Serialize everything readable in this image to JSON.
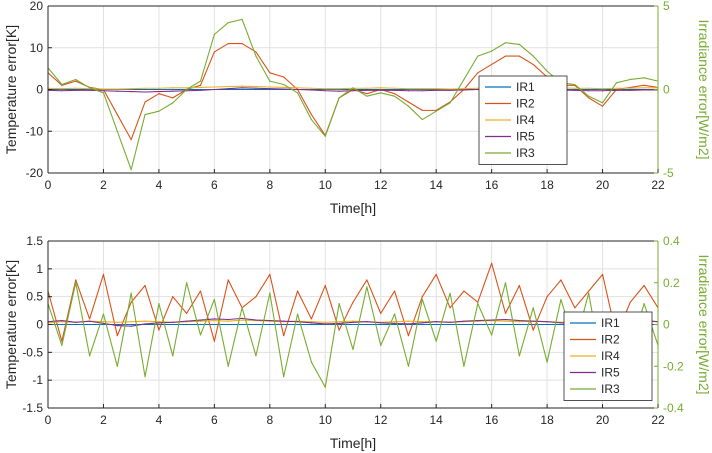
{
  "colors": {
    "IR1": "#0072BD",
    "IR2": "#D95319",
    "IR4": "#EDB120",
    "IR5": "#7E2F8E",
    "IR3": "#77AC30",
    "right_axis": "#77AC30",
    "grid": "#e1e1e1",
    "axis": "#262626"
  },
  "chart_data": [
    {
      "type": "line",
      "xlabel": "Time[h]",
      "ylabel": "Temperature error[K]",
      "ylabel_right": "Irradiance error[W/m2]",
      "xlim": [
        0,
        22
      ],
      "ylim": [
        -20,
        20
      ],
      "ylim_right": [
        -5,
        5
      ],
      "x_ticks": [
        "0",
        "2",
        "4",
        "6",
        "8",
        "10",
        "12",
        "14",
        "16",
        "18",
        "20",
        "22"
      ],
      "y_ticks": [
        "20",
        "10",
        "0",
        "-10",
        "-20"
      ],
      "y_ticks_right": [
        "5",
        "0",
        "-5"
      ],
      "grid": true,
      "legend": {
        "position": "center-right",
        "entries": [
          "IR1",
          "IR2",
          "IR4",
          "IR5",
          "IR3"
        ]
      },
      "x": [
        0,
        0.5,
        1.0,
        1.5,
        2.0,
        2.5,
        3.0,
        3.5,
        4.0,
        4.5,
        5.0,
        5.5,
        6.0,
        6.5,
        7.0,
        7.5,
        8.0,
        8.5,
        9.0,
        9.5,
        10.0,
        10.5,
        11.0,
        11.5,
        12.0,
        12.5,
        13.0,
        13.5,
        14.0,
        14.5,
        15.0,
        15.5,
        16.0,
        16.5,
        17.0,
        17.5,
        18.0,
        18.5,
        19.0,
        19.5,
        20.0,
        20.5,
        21.0,
        21.5,
        22.0
      ],
      "series": [
        {
          "name": "IR1",
          "axis": "left",
          "values": [
            0,
            0,
            0,
            0,
            0,
            0,
            0,
            0,
            0,
            0,
            0,
            0,
            0,
            0,
            0,
            0,
            0,
            0,
            0,
            0,
            0,
            0,
            0,
            0,
            0,
            0,
            0,
            0,
            0,
            0,
            0,
            0,
            0,
            0,
            0,
            0,
            0,
            0,
            0,
            0,
            0,
            0,
            0,
            0,
            0
          ]
        },
        {
          "name": "IR2",
          "axis": "left",
          "values": [
            4,
            1,
            2,
            0.5,
            0,
            -6,
            -12,
            -3,
            -1,
            -2,
            0,
            1,
            9,
            11,
            11,
            9,
            4,
            3,
            0,
            -6,
            -11,
            -2,
            0,
            -1,
            0,
            -1,
            -3,
            -5,
            -5,
            -3,
            0,
            4,
            6,
            8,
            8,
            6,
            3,
            1,
            1,
            -2,
            -4,
            0,
            0.5,
            1,
            0.5
          ]
        },
        {
          "name": "IR4",
          "axis": "left",
          "values": [
            0.3,
            0.2,
            0.3,
            0.2,
            0.1,
            0.1,
            0.2,
            0.3,
            0.3,
            0.4,
            0.4,
            0.5,
            0.6,
            0.7,
            0.8,
            0.7,
            0.6,
            0.5,
            0.4,
            0.3,
            0.2,
            0.2,
            0.3,
            0.3,
            0.4,
            0.3,
            0.2,
            0.2,
            0.2,
            0.1,
            0.2,
            0.3,
            0.4,
            0.5,
            0.6,
            0.5,
            0.5,
            0.4,
            0.3,
            0.3,
            0.2,
            0.3,
            0.3,
            0.4,
            0.4
          ]
        },
        {
          "name": "IR5",
          "axis": "left",
          "values": [
            -0.2,
            -0.3,
            -0.2,
            -0.2,
            -0.3,
            -0.4,
            -0.5,
            -0.6,
            -0.5,
            -0.4,
            -0.3,
            -0.2,
            0,
            0.2,
            0.4,
            0.3,
            0.2,
            0.1,
            0,
            -0.1,
            -0.3,
            -0.4,
            -0.3,
            -0.2,
            -0.2,
            -0.2,
            -0.3,
            -0.3,
            -0.2,
            -0.2,
            -0.1,
            0,
            0.1,
            0.2,
            0.2,
            0.1,
            0,
            -0.1,
            -0.2,
            -0.3,
            -0.3,
            -0.2,
            -0.2,
            -0.1,
            -0.1
          ]
        },
        {
          "name": "IR3",
          "axis": "right",
          "values": [
            1.3,
            0.3,
            0.6,
            0.1,
            -0.2,
            -2.5,
            -4.8,
            -1.5,
            -1.3,
            -0.8,
            0,
            0.5,
            3.3,
            4.0,
            4.2,
            2.0,
            0.5,
            0.3,
            -0.2,
            -1.8,
            -2.8,
            -0.5,
            0.1,
            -0.4,
            -0.2,
            -0.4,
            -1.0,
            -1.8,
            -1.3,
            -0.8,
            0.6,
            2.0,
            2.3,
            2.8,
            2.7,
            2.0,
            1.1,
            0.4,
            0.3,
            -0.4,
            -0.8,
            0.4,
            0.6,
            0.7,
            0.5
          ]
        }
      ]
    },
    {
      "type": "line",
      "xlabel": "Time[h]",
      "ylabel": "Temperature error[K]",
      "ylabel_right": "Irradiance error[W/m2]",
      "xlim": [
        0,
        22
      ],
      "ylim": [
        -1.5,
        1.5
      ],
      "ylim_right": [
        -0.4,
        0.4
      ],
      "x_ticks": [
        "0",
        "2",
        "4",
        "6",
        "8",
        "10",
        "12",
        "14",
        "16",
        "18",
        "20",
        "22"
      ],
      "y_ticks": [
        "1.5",
        "1",
        "0.5",
        "0",
        "-0.5",
        "-1",
        "-1.5"
      ],
      "y_ticks_right": [
        "0.4",
        "0.2",
        "0",
        "-0.2",
        "-0.4"
      ],
      "grid": true,
      "legend": {
        "position": "lower-right",
        "entries": [
          "IR1",
          "IR2",
          "IR4",
          "IR5",
          "IR3"
        ]
      },
      "x": [
        0,
        0.5,
        1.0,
        1.5,
        2.0,
        2.5,
        3.0,
        3.5,
        4.0,
        4.5,
        5.0,
        5.5,
        6.0,
        6.5,
        7.0,
        7.5,
        8.0,
        8.5,
        9.0,
        9.5,
        10.0,
        10.5,
        11.0,
        11.5,
        12.0,
        12.5,
        13.0,
        13.5,
        14.0,
        14.5,
        15.0,
        15.5,
        16.0,
        16.5,
        17.0,
        17.5,
        18.0,
        18.5,
        19.0,
        19.5,
        20.0,
        20.5,
        21.0,
        21.5,
        22.0
      ],
      "series": [
        {
          "name": "IR1",
          "axis": "left",
          "values": [
            0,
            0,
            0,
            0,
            0,
            0,
            0,
            0,
            0,
            0,
            0,
            0,
            0,
            0,
            0,
            0,
            0,
            0,
            0,
            0,
            0,
            0,
            0,
            0,
            0,
            0,
            0,
            0,
            0,
            0,
            0,
            0,
            0,
            0,
            0,
            0,
            0,
            0,
            0,
            0,
            0,
            0,
            0,
            0,
            0
          ]
        },
        {
          "name": "IR2",
          "axis": "left",
          "values": [
            0.6,
            -0.3,
            0.8,
            0.1,
            0.9,
            -0.2,
            0.4,
            0.7,
            -0.1,
            0.5,
            0.2,
            0.6,
            -0.3,
            0.8,
            0.3,
            0.5,
            0.9,
            -0.2,
            0.6,
            0.1,
            0.7,
            -0.1,
            0.4,
            0.8,
            0.2,
            0.6,
            -0.2,
            0.5,
            0.9,
            0.3,
            0.6,
            0.4,
            1.1,
            0.2,
            0.7,
            -0.1,
            0.5,
            0.8,
            0.3,
            0.6,
            0.9,
            -0.2,
            0.4,
            0.7,
            0.3
          ]
        },
        {
          "name": "IR4",
          "axis": "left",
          "values": [
            0.03,
            0.05,
            0.04,
            0.06,
            0.05,
            0.04,
            0.05,
            0.06,
            0.05,
            0.04,
            0.05,
            0.06,
            0.07,
            0.06,
            0.08,
            0.07,
            0.06,
            0.05,
            0.06,
            0.05,
            0.04,
            0.05,
            0.06,
            0.05,
            0.04,
            0.05,
            0.06,
            0.05,
            0.05,
            0.04,
            0.05,
            0.06,
            0.07,
            0.06,
            0.05,
            0.06,
            0.05,
            0.04,
            0.05,
            0.06,
            0.05,
            0.04,
            0.05,
            0.06,
            0.05
          ]
        },
        {
          "name": "IR5",
          "axis": "left",
          "values": [
            0.05,
            0.07,
            0.04,
            0.06,
            0.02,
            -0.02,
            -0.03,
            0.01,
            0.03,
            0.04,
            0.06,
            0.08,
            0.1,
            0.09,
            0.11,
            0.08,
            0.07,
            0.06,
            0.05,
            0.03,
            0.01,
            0.02,
            0.04,
            0.05,
            0.03,
            0.02,
            0.01,
            0.03,
            0.05,
            0.04,
            0.06,
            0.07,
            0.08,
            0.09,
            0.07,
            0.06,
            0.05,
            0.03,
            0.02,
            0.01,
            0.03,
            0.05,
            0.06,
            0.07,
            0.05
          ]
        },
        {
          "name": "IR3",
          "axis": "right",
          "values": [
            0.1,
            -0.1,
            0.2,
            -0.15,
            0.05,
            -0.2,
            0.15,
            -0.25,
            0.1,
            -0.15,
            0.2,
            -0.05,
            0.12,
            -0.2,
            0.08,
            -0.15,
            0.15,
            -0.25,
            0.05,
            -0.18,
            -0.3,
            0.1,
            -0.12,
            0.18,
            -0.1,
            0.05,
            -0.2,
            0.12,
            -0.08,
            0.15,
            -0.2,
            0.1,
            -0.05,
            0.2,
            -0.15,
            0.08,
            -0.18,
            0.12,
            -0.1,
            0.15,
            -0.22,
            0.05,
            -0.12,
            0.1,
            -0.1
          ]
        }
      ]
    }
  ]
}
